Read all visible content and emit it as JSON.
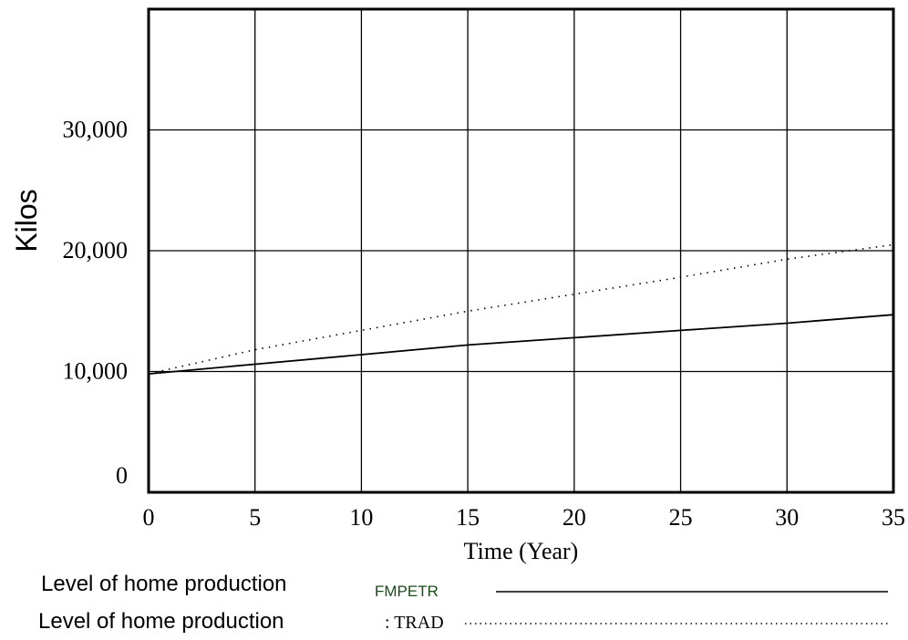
{
  "chart_data": {
    "type": "line",
    "title": "",
    "xlabel": "Time (Year)",
    "ylabel": "Kilos",
    "xlim": [
      0,
      35
    ],
    "ylim": [
      0,
      40000
    ],
    "x_ticks": [
      0,
      5,
      10,
      15,
      20,
      25,
      30,
      35
    ],
    "x_tick_labels": [
      "0",
      "5",
      "10",
      "15",
      "20",
      "25",
      "30",
      "35"
    ],
    "y_ticks": [
      0,
      10000,
      20000,
      30000
    ],
    "y_tick_labels": [
      "0",
      "10,000",
      "20,000",
      "30,000"
    ],
    "grid": true,
    "legend_placement": "bottom",
    "series": [
      {
        "name": "Level of home production",
        "tag": "FMPETR",
        "line_style": "solid",
        "color": "#000000",
        "x": [
          0,
          5,
          10,
          15,
          20,
          25,
          30,
          35
        ],
        "y": [
          9800,
          10600,
          11400,
          12200,
          12800,
          13400,
          14000,
          14700
        ]
      },
      {
        "name": "Level of home production",
        "tag": ": TRAD",
        "line_style": "dotted",
        "color": "#000000",
        "x": [
          0,
          5,
          10,
          15,
          20,
          25,
          30,
          35
        ],
        "y": [
          9800,
          11800,
          13400,
          15000,
          16400,
          17800,
          19300,
          20500
        ]
      }
    ]
  }
}
